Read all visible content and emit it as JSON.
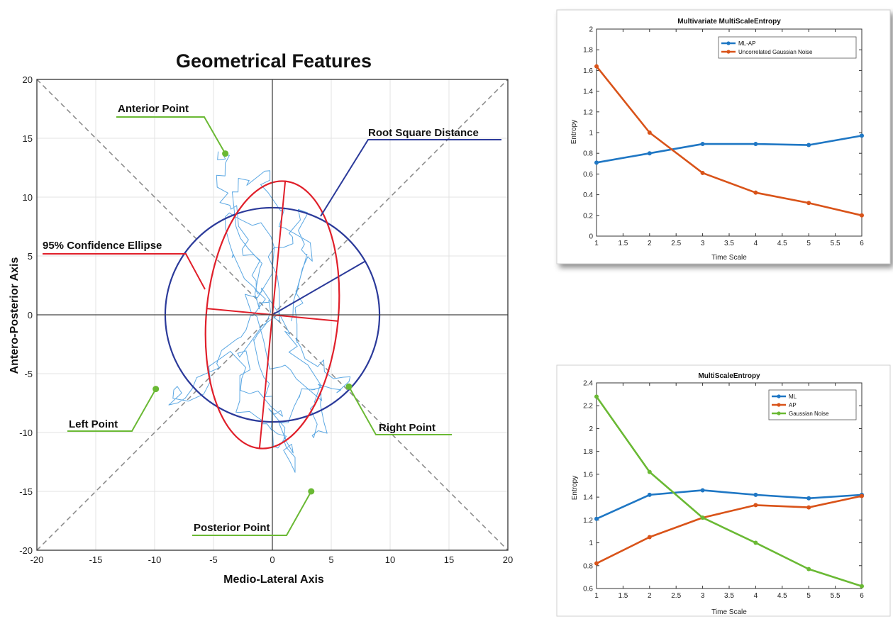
{
  "chart_data": [
    {
      "type": "scatter",
      "title": "Geometrical Features",
      "xlabel": "Medio-Lateral Axis",
      "ylabel": "Antero-Posterior Axis",
      "xlim": [
        -20,
        20
      ],
      "ylim": [
        -20,
        20
      ],
      "xticks": [
        -20,
        -15,
        -10,
        -5,
        0,
        5,
        10,
        15,
        20
      ],
      "yticks": [
        -20,
        -15,
        -10,
        -5,
        0,
        5,
        10,
        15,
        20
      ],
      "grid": true,
      "colors": {
        "trajectory": "#4a9fe0",
        "ellipse": "#e01f2a",
        "circle": "#2b3a9a",
        "points": "#6ab934",
        "diagonal": "#888888"
      },
      "circle_radius": 9.1,
      "points": [
        {
          "name": "Anterior Point",
          "x": -4,
          "y": 13.7
        },
        {
          "name": "Left Point",
          "x": -9.9,
          "y": -6.3
        },
        {
          "name": "Right Point",
          "x": 6.5,
          "y": -6.1
        },
        {
          "name": "Posterior Point",
          "x": 3.3,
          "y": -15
        }
      ],
      "annotations": {
        "anterior": "Anterior Point",
        "root": "Root Square Distance",
        "ellipse": "95% Confidence Ellipse",
        "left": "Left Point",
        "right": "Right Point",
        "posterior": "Posterior Point"
      }
    },
    {
      "type": "line",
      "title": "Multivariate MultiScaleEntropy",
      "xlabel": "Time Scale",
      "ylabel": "Entropy",
      "xlim": [
        1,
        6
      ],
      "ylim": [
        0,
        2
      ],
      "xticks": [
        "1",
        "1.5",
        "2",
        "2.5",
        "3",
        "3.5",
        "4",
        "4.5",
        "5",
        "5.5",
        "6"
      ],
      "yticks": [
        "0",
        "0.2",
        "0.4",
        "0.6",
        "0.8",
        "1",
        "1.2",
        "1.4",
        "1.6",
        "1.8",
        "2"
      ],
      "x": [
        1,
        2,
        3,
        4,
        5,
        6
      ],
      "legend_position": "top-right",
      "series": [
        {
          "name": "ML-AP",
          "color": "#1f77c4",
          "values": [
            0.71,
            0.8,
            0.89,
            0.89,
            0.88,
            0.97
          ]
        },
        {
          "name": "Uncorrelated Gaussian Noise",
          "color": "#d95319",
          "values": [
            1.64,
            1.0,
            0.61,
            0.42,
            0.32,
            0.2
          ]
        }
      ]
    },
    {
      "type": "line",
      "title": "MultiScaleEntropy",
      "xlabel": "Time Scale",
      "ylabel": "Entropy",
      "xlim": [
        1,
        6
      ],
      "ylim": [
        0.6,
        2.4
      ],
      "xticks": [
        "1",
        "1.5",
        "2",
        "2.5",
        "3",
        "3.5",
        "4",
        "4.5",
        "5",
        "5.5",
        "6"
      ],
      "yticks": [
        "0.6",
        "0.8",
        "1",
        "1.2",
        "1.4",
        "1.6",
        "1.8",
        "2",
        "2.2",
        "2.4"
      ],
      "x": [
        1,
        2,
        3,
        4,
        5,
        6
      ],
      "legend_position": "top-right",
      "series": [
        {
          "name": "ML",
          "color": "#1f77c4",
          "values": [
            1.21,
            1.42,
            1.46,
            1.42,
            1.39,
            1.42
          ]
        },
        {
          "name": "AP",
          "color": "#d95319",
          "values": [
            0.82,
            1.05,
            1.22,
            1.33,
            1.31,
            1.41
          ]
        },
        {
          "name": "Gaussian Noise",
          "color": "#6ab934",
          "values": [
            2.28,
            1.62,
            1.22,
            1.0,
            0.77,
            0.62
          ]
        }
      ]
    }
  ]
}
